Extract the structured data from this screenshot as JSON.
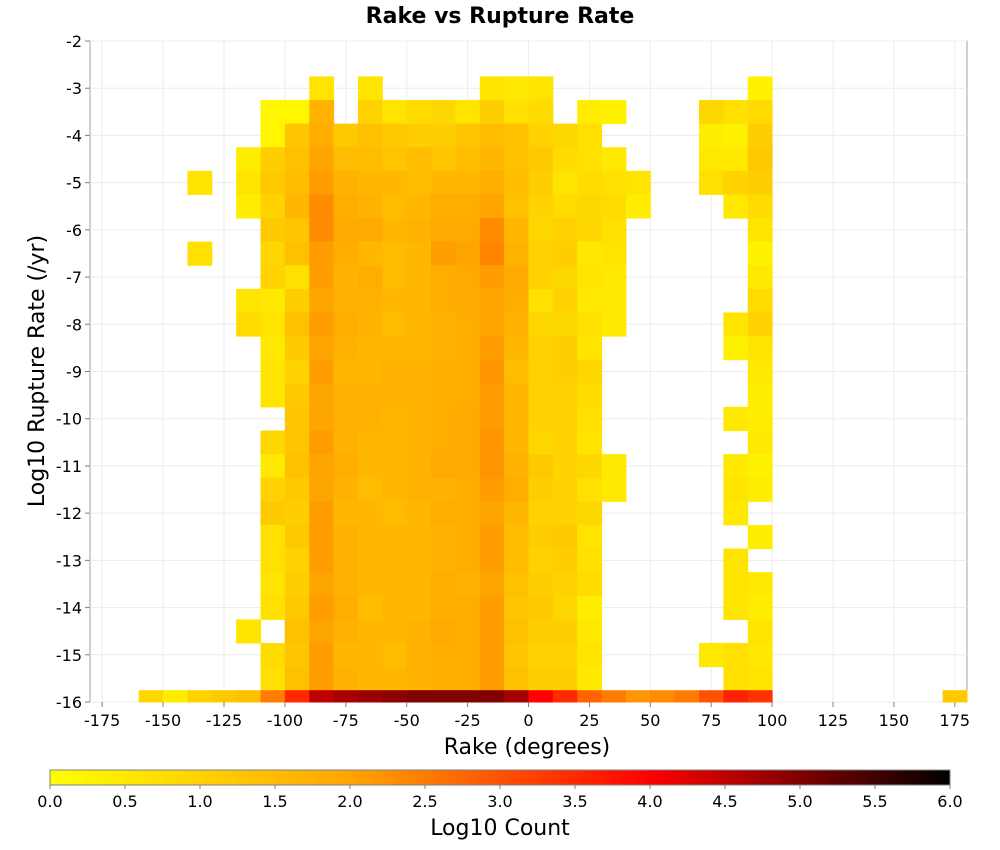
{
  "chart_data": {
    "type": "heatmap",
    "title": "Rake vs Rupture Rate",
    "xlabel": "Rake (degrees)",
    "ylabel": "Log10 Rupture Rate (/yr)",
    "xlim": [
      -180,
      180
    ],
    "ylim": [
      -16,
      -2
    ],
    "bin_width_x": 10,
    "bin_height_y": 0.5,
    "x_ticks": [
      -175,
      -150,
      -125,
      -100,
      -75,
      -50,
      -25,
      0,
      25,
      50,
      75,
      100,
      125,
      150,
      175
    ],
    "y_ticks": [
      -2,
      -3,
      -4,
      -5,
      -6,
      -7,
      -8,
      -9,
      -10,
      -11,
      -12,
      -13,
      -14,
      -15,
      -16
    ],
    "grid": true,
    "colorbar": {
      "label": "Log10 Count",
      "range": [
        0,
        6
      ],
      "ticks": [
        "0.0",
        "0.5",
        "1.0",
        "1.5",
        "2.0",
        "2.5",
        "3.0",
        "3.5",
        "4.0",
        "4.5",
        "5.0",
        "5.5",
        "6.0"
      ],
      "colors": [
        "#ffff00",
        "#ffa500",
        "#ff0000",
        "#000000"
      ]
    },
    "y_bins": [
      -3,
      -3.5,
      -4,
      -4.5,
      -5,
      -5.5,
      -6,
      -6.5,
      -7,
      -7.5,
      -8,
      -8.5,
      -9,
      -9.5,
      -10,
      -10.5,
      -11,
      -11.5,
      -12,
      -12.5,
      -13,
      -13.5,
      -14,
      -14.5,
      -15,
      -15.5,
      -16
    ],
    "columns": [
      {
        "x": -155,
        "values": [
          null,
          null,
          null,
          null,
          null,
          null,
          null,
          null,
          null,
          null,
          null,
          null,
          null,
          null,
          null,
          null,
          null,
          null,
          null,
          null,
          null,
          null,
          null,
          null,
          null,
          null,
          0.9
        ]
      },
      {
        "x": -145,
        "values": [
          null,
          null,
          null,
          null,
          null,
          null,
          null,
          null,
          null,
          null,
          null,
          null,
          null,
          null,
          null,
          null,
          null,
          null,
          null,
          null,
          null,
          null,
          null,
          null,
          null,
          null,
          0.4
        ]
      },
      {
        "x": -135,
        "values": [
          null,
          null,
          null,
          null,
          0.6,
          null,
          null,
          0.7,
          null,
          null,
          null,
          null,
          null,
          null,
          null,
          null,
          null,
          null,
          null,
          null,
          null,
          null,
          null,
          null,
          null,
          null,
          1.0
        ]
      },
      {
        "x": -125,
        "values": [
          null,
          null,
          null,
          null,
          null,
          null,
          null,
          null,
          null,
          null,
          null,
          null,
          null,
          null,
          null,
          null,
          null,
          null,
          null,
          null,
          null,
          null,
          null,
          null,
          null,
          null,
          1.2
        ]
      },
      {
        "x": -115,
        "values": [
          null,
          null,
          null,
          0.4,
          0.6,
          0.4,
          null,
          null,
          null,
          0.6,
          0.8,
          null,
          null,
          null,
          null,
          null,
          null,
          null,
          null,
          null,
          null,
          null,
          null,
          0.6,
          null,
          null,
          1.4
        ]
      },
      {
        "x": -105,
        "values": [
          null,
          0.2,
          0.2,
          1.1,
          1.2,
          1.0,
          1.2,
          0.9,
          1.0,
          0.5,
          0.6,
          0.5,
          0.6,
          0.6,
          null,
          0.9,
          0.5,
          1.0,
          1.2,
          0.7,
          0.7,
          0.6,
          0.7,
          null,
          0.8,
          0.7,
          2.5
        ]
      },
      {
        "x": -95,
        "values": [
          null,
          0.2,
          1.3,
          1.4,
          1.5,
          1.6,
          1.3,
          1.4,
          0.7,
          1.1,
          1.4,
          1.2,
          1.0,
          1.2,
          1.3,
          1.3,
          1.4,
          1.2,
          1.1,
          1.2,
          1.0,
          1.1,
          1.2,
          1.4,
          1.3,
          1.4,
          3.5
        ]
      },
      {
        "x": -85,
        "values": [
          0.6,
          1.7,
          1.8,
          2.0,
          2.1,
          2.3,
          2.3,
          2.1,
          2.1,
          2.0,
          2.1,
          2.0,
          2.1,
          2.0,
          2.0,
          2.1,
          2.0,
          2.0,
          2.1,
          2.1,
          2.1,
          2.0,
          2.1,
          2.0,
          2.1,
          2.1,
          4.5
        ]
      },
      {
        "x": -75,
        "values": [
          null,
          null,
          1.2,
          1.5,
          1.7,
          1.8,
          1.9,
          1.8,
          1.7,
          1.7,
          1.8,
          1.7,
          1.6,
          1.7,
          1.7,
          1.7,
          1.8,
          1.7,
          1.6,
          1.7,
          1.7,
          1.7,
          1.8,
          1.7,
          1.6,
          1.7,
          4.7
        ]
      },
      {
        "x": -65,
        "values": [
          0.6,
          1.0,
          1.4,
          1.5,
          1.6,
          1.7,
          1.9,
          1.6,
          1.8,
          1.7,
          1.7,
          1.6,
          1.6,
          1.7,
          1.7,
          1.6,
          1.6,
          1.5,
          1.6,
          1.6,
          1.6,
          1.6,
          1.5,
          1.6,
          1.6,
          1.6,
          4.8
        ]
      },
      {
        "x": -55,
        "values": [
          null,
          0.6,
          1.2,
          1.3,
          1.6,
          1.5,
          1.6,
          1.5,
          1.5,
          1.6,
          1.5,
          1.6,
          1.7,
          1.7,
          1.6,
          1.6,
          1.6,
          1.6,
          1.5,
          1.6,
          1.6,
          1.6,
          1.6,
          1.6,
          1.5,
          1.6,
          4.9
        ]
      },
      {
        "x": -45,
        "values": [
          null,
          0.8,
          1.1,
          1.5,
          1.5,
          1.6,
          1.7,
          1.6,
          1.6,
          1.6,
          1.6,
          1.6,
          1.7,
          1.7,
          1.7,
          1.7,
          1.7,
          1.7,
          1.6,
          1.6,
          1.6,
          1.6,
          1.6,
          1.7,
          1.7,
          1.7,
          5.0
        ]
      },
      {
        "x": -35,
        "values": [
          null,
          0.9,
          1.1,
          1.3,
          1.6,
          1.8,
          1.9,
          2.1,
          1.8,
          1.8,
          1.7,
          1.7,
          1.8,
          1.8,
          1.8,
          1.8,
          1.9,
          1.7,
          1.8,
          1.7,
          1.7,
          1.8,
          1.8,
          1.9,
          1.8,
          1.8,
          5.0
        ]
      },
      {
        "x": -25,
        "values": [
          null,
          0.6,
          1.3,
          1.5,
          1.6,
          1.8,
          1.9,
          2.0,
          1.9,
          1.9,
          1.8,
          1.8,
          1.8,
          1.8,
          1.9,
          1.9,
          1.9,
          1.8,
          1.8,
          1.8,
          1.8,
          1.7,
          1.8,
          1.8,
          1.8,
          1.8,
          5.0
        ]
      },
      {
        "x": -15,
        "values": [
          0.6,
          1.1,
          1.5,
          1.6,
          1.8,
          2.0,
          2.3,
          2.4,
          2.1,
          2.0,
          2.0,
          2.1,
          2.2,
          2.1,
          2.1,
          2.2,
          2.2,
          2.1,
          2.0,
          2.1,
          2.1,
          2.0,
          2.1,
          2.1,
          2.1,
          2.1,
          5.0
        ]
      },
      {
        "x": -5,
        "values": [
          0.5,
          0.7,
          1.4,
          1.4,
          1.5,
          1.4,
          1.6,
          1.7,
          1.9,
          1.8,
          1.7,
          1.6,
          1.5,
          1.6,
          1.6,
          1.6,
          1.7,
          1.8,
          1.6,
          1.5,
          1.5,
          1.4,
          1.3,
          1.4,
          1.3,
          1.4,
          4.7
        ]
      },
      {
        "x": 5,
        "values": [
          0.6,
          0.8,
          1.0,
          1.2,
          1.1,
          1.0,
          0.9,
          1.0,
          1.0,
          0.7,
          0.9,
          1.0,
          1.0,
          1.0,
          1.0,
          0.9,
          1.2,
          1.1,
          1.0,
          1.1,
          1.0,
          1.1,
          1.2,
          1.1,
          1.0,
          1.1,
          4.0
        ]
      },
      {
        "x": 15,
        "values": [
          null,
          null,
          0.9,
          0.8,
          0.6,
          0.8,
          1.0,
          1.1,
          0.9,
          1.0,
          0.9,
          1.1,
          1.1,
          1.0,
          1.0,
          1.0,
          1.0,
          1.0,
          1.0,
          1.2,
          1.1,
          1.0,
          0.9,
          1.1,
          1.0,
          1.1,
          3.5
        ]
      },
      {
        "x": 25,
        "values": [
          null,
          0.4,
          0.7,
          0.7,
          0.8,
          0.9,
          0.9,
          0.5,
          0.6,
          0.5,
          0.7,
          0.6,
          0.9,
          0.8,
          0.7,
          0.6,
          0.9,
          0.7,
          0.9,
          0.6,
          0.7,
          0.8,
          0.4,
          0.5,
          0.6,
          0.5,
          2.8
        ]
      },
      {
        "x": 35,
        "values": [
          null,
          0.3,
          null,
          0.5,
          0.7,
          0.8,
          0.7,
          0.6,
          0.5,
          0.5,
          0.5,
          null,
          null,
          null,
          null,
          null,
          0.5,
          0.5,
          null,
          null,
          null,
          null,
          null,
          null,
          null,
          null,
          2.5
        ]
      },
      {
        "x": 45,
        "values": [
          null,
          null,
          null,
          null,
          0.6,
          0.4,
          null,
          null,
          null,
          null,
          null,
          null,
          null,
          null,
          null,
          null,
          null,
          null,
          null,
          null,
          null,
          null,
          null,
          null,
          null,
          null,
          2.2
        ]
      },
      {
        "x": 55,
        "values": [
          null,
          null,
          null,
          null,
          null,
          null,
          null,
          null,
          null,
          null,
          null,
          null,
          null,
          null,
          null,
          null,
          null,
          null,
          null,
          null,
          null,
          null,
          null,
          null,
          null,
          null,
          2.3
        ]
      },
      {
        "x": 65,
        "values": [
          null,
          null,
          null,
          null,
          null,
          null,
          null,
          null,
          null,
          null,
          null,
          null,
          null,
          null,
          null,
          null,
          null,
          null,
          null,
          null,
          null,
          null,
          null,
          null,
          null,
          null,
          2.5
        ]
      },
      {
        "x": 75,
        "values": [
          null,
          0.9,
          0.4,
          0.5,
          0.7,
          null,
          null,
          null,
          null,
          null,
          null,
          null,
          null,
          null,
          null,
          null,
          null,
          null,
          null,
          null,
          null,
          null,
          null,
          null,
          0.5,
          null,
          3.0
        ]
      },
      {
        "x": 85,
        "values": [
          null,
          0.7,
          0.3,
          0.5,
          1.0,
          0.5,
          null,
          null,
          null,
          null,
          0.6,
          0.3,
          null,
          null,
          0.5,
          null,
          0.5,
          0.6,
          0.5,
          null,
          0.6,
          0.6,
          0.6,
          null,
          0.7,
          0.7,
          3.6
        ]
      },
      {
        "x": 95,
        "values": [
          0.3,
          0.8,
          1.1,
          1.2,
          1.1,
          0.8,
          0.6,
          0.3,
          0.5,
          0.8,
          1.0,
          0.6,
          0.5,
          0.4,
          0.4,
          0.5,
          0.3,
          0.4,
          null,
          0.4,
          null,
          0.5,
          0.4,
          0.6,
          0.5,
          0.6,
          3.4
        ]
      },
      {
        "x": 175,
        "values": [
          null,
          null,
          null,
          null,
          null,
          null,
          null,
          null,
          null,
          null,
          null,
          null,
          null,
          null,
          null,
          null,
          null,
          null,
          null,
          null,
          null,
          null,
          null,
          null,
          null,
          null,
          1.2
        ]
      }
    ]
  }
}
